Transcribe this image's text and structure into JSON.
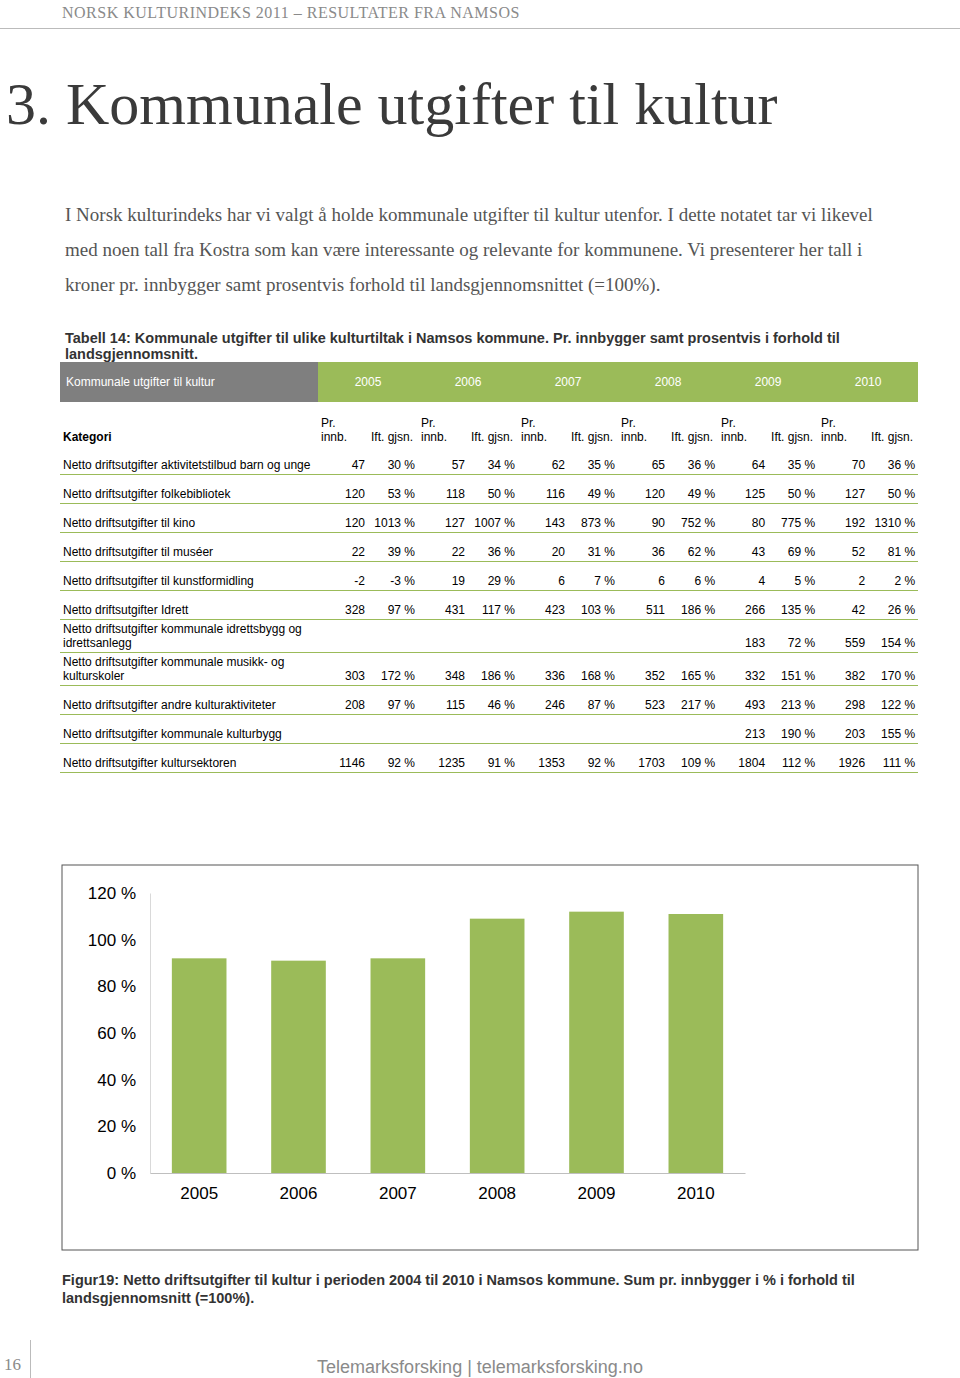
{
  "header": {
    "running_title": "NORSK KULTURINDEKS 2011 – RESULTATER FRA NAMSOS"
  },
  "heading": "3. Kommunale utgifter til kultur",
  "intro": "I Norsk kulturindeks har vi valgt å holde kommunale utgifter til kultur utenfor. I dette notatet tar vi likevel med noen tall fra Kostra som kan være interessante og relevante for kommunene. Vi presenterer her tall i kroner pr. innbygger samt prosentvis forhold til landsgjennomsnittet (=100%).",
  "table": {
    "caption": "Tabell 14: Kommunale utgifter til ulike kulturtiltak i Namsos kommune. Pr. innbygger samt prosentvis i forhold til landsgjennomsnitt.",
    "header_title": "Kommunale utgifter til kultur",
    "years": [
      "2005",
      "2006",
      "2007",
      "2008",
      "2009",
      "2010"
    ],
    "sub_labels": [
      "Kategori",
      "Pr. innb.",
      "Ift. gjsn."
    ],
    "rows": [
      {
        "label": "Netto driftsutgifter aktivitetstilbud barn og unge",
        "cells": [
          "47",
          "30 %",
          "57",
          "34 %",
          "62",
          "35 %",
          "65",
          "36 %",
          "64",
          "35 %",
          "70",
          "36 %"
        ]
      },
      {
        "label": "Netto driftsutgifter folkebibliotek",
        "cells": [
          "120",
          "53 %",
          "118",
          "50 %",
          "116",
          "49 %",
          "120",
          "49 %",
          "125",
          "50 %",
          "127",
          "50 %"
        ]
      },
      {
        "label": "Netto driftsutgifter til kino",
        "cells": [
          "120",
          "1013 %",
          "127",
          "1007 %",
          "143",
          "873 %",
          "90",
          "752 %",
          "80",
          "775 %",
          "192",
          "1310 %"
        ]
      },
      {
        "label": "Netto driftsutgifter til muséer",
        "cells": [
          "22",
          "39 %",
          "22",
          "36 %",
          "20",
          "31 %",
          "36",
          "62 %",
          "43",
          "69 %",
          "52",
          "81 %"
        ]
      },
      {
        "label": "Netto driftsutgifter til kunstformidling",
        "cells": [
          "-2",
          "-3 %",
          "19",
          "29 %",
          "6",
          "7 %",
          "6",
          "6 %",
          "4",
          "5 %",
          "2",
          "2 %"
        ]
      },
      {
        "label": "Netto driftsutgifter Idrett",
        "cells": [
          "328",
          "97 %",
          "431",
          "117 %",
          "423",
          "103 %",
          "511",
          "186 %",
          "266",
          "135 %",
          "42",
          "26 %"
        ]
      },
      {
        "label": "Netto driftsutgifter kommunale idrettsbygg og idrettsanlegg",
        "cells": [
          null,
          null,
          null,
          null,
          null,
          null,
          null,
          null,
          "183",
          "72 %",
          "559",
          "154 %"
        ]
      },
      {
        "label": "Netto driftsutgifter kommunale musikk- og kulturskoler",
        "cells": [
          "303",
          "172 %",
          "348",
          "186 %",
          "336",
          "168 %",
          "352",
          "165 %",
          "332",
          "151 %",
          "382",
          "170 %"
        ]
      },
      {
        "label": "Netto driftsutgifter andre kulturaktiviteter",
        "cells": [
          "208",
          "97 %",
          "115",
          "46 %",
          "246",
          "87 %",
          "523",
          "217 %",
          "493",
          "213 %",
          "298",
          "122 %"
        ]
      },
      {
        "label": "Netto driftsutgifter kommunale kulturbygg",
        "cells": [
          null,
          null,
          null,
          null,
          null,
          null,
          null,
          null,
          "213",
          "190 %",
          "203",
          "155 %"
        ]
      },
      {
        "label": "Netto driftsutgifter kultursektoren",
        "cells": [
          "1146",
          "92 %",
          "1235",
          "91 %",
          "1353",
          "92 %",
          "1703",
          "109 %",
          "1804",
          "112 %",
          "1926",
          "111 %"
        ]
      }
    ]
  },
  "chart_data": {
    "type": "bar",
    "categories": [
      "2005",
      "2006",
      "2007",
      "2008",
      "2009",
      "2010"
    ],
    "values": [
      92,
      91,
      92,
      109,
      112,
      111
    ],
    "color": "#9bbb59",
    "ylim": [
      0,
      120
    ],
    "yticks": [
      {
        "value": 0,
        "label": "0 %"
      },
      {
        "value": 20,
        "label": "20 %"
      },
      {
        "value": 40,
        "label": "40 %"
      },
      {
        "value": 60,
        "label": "60 %"
      },
      {
        "value": 80,
        "label": "80 %"
      },
      {
        "value": 100,
        "label": "100 %"
      },
      {
        "value": 120,
        "label": "120 %"
      }
    ],
    "grid": false
  },
  "figure_caption": "Figur19: Netto driftsutgifter til kultur i perioden 2004 til 2010 i Namsos kommune. Sum pr. innbygger i % i forhold til landsgjennomsnitt (=100%).",
  "footer": {
    "page_number": "16",
    "publisher": "Telemarksforsking | telemarksforsking.no"
  }
}
